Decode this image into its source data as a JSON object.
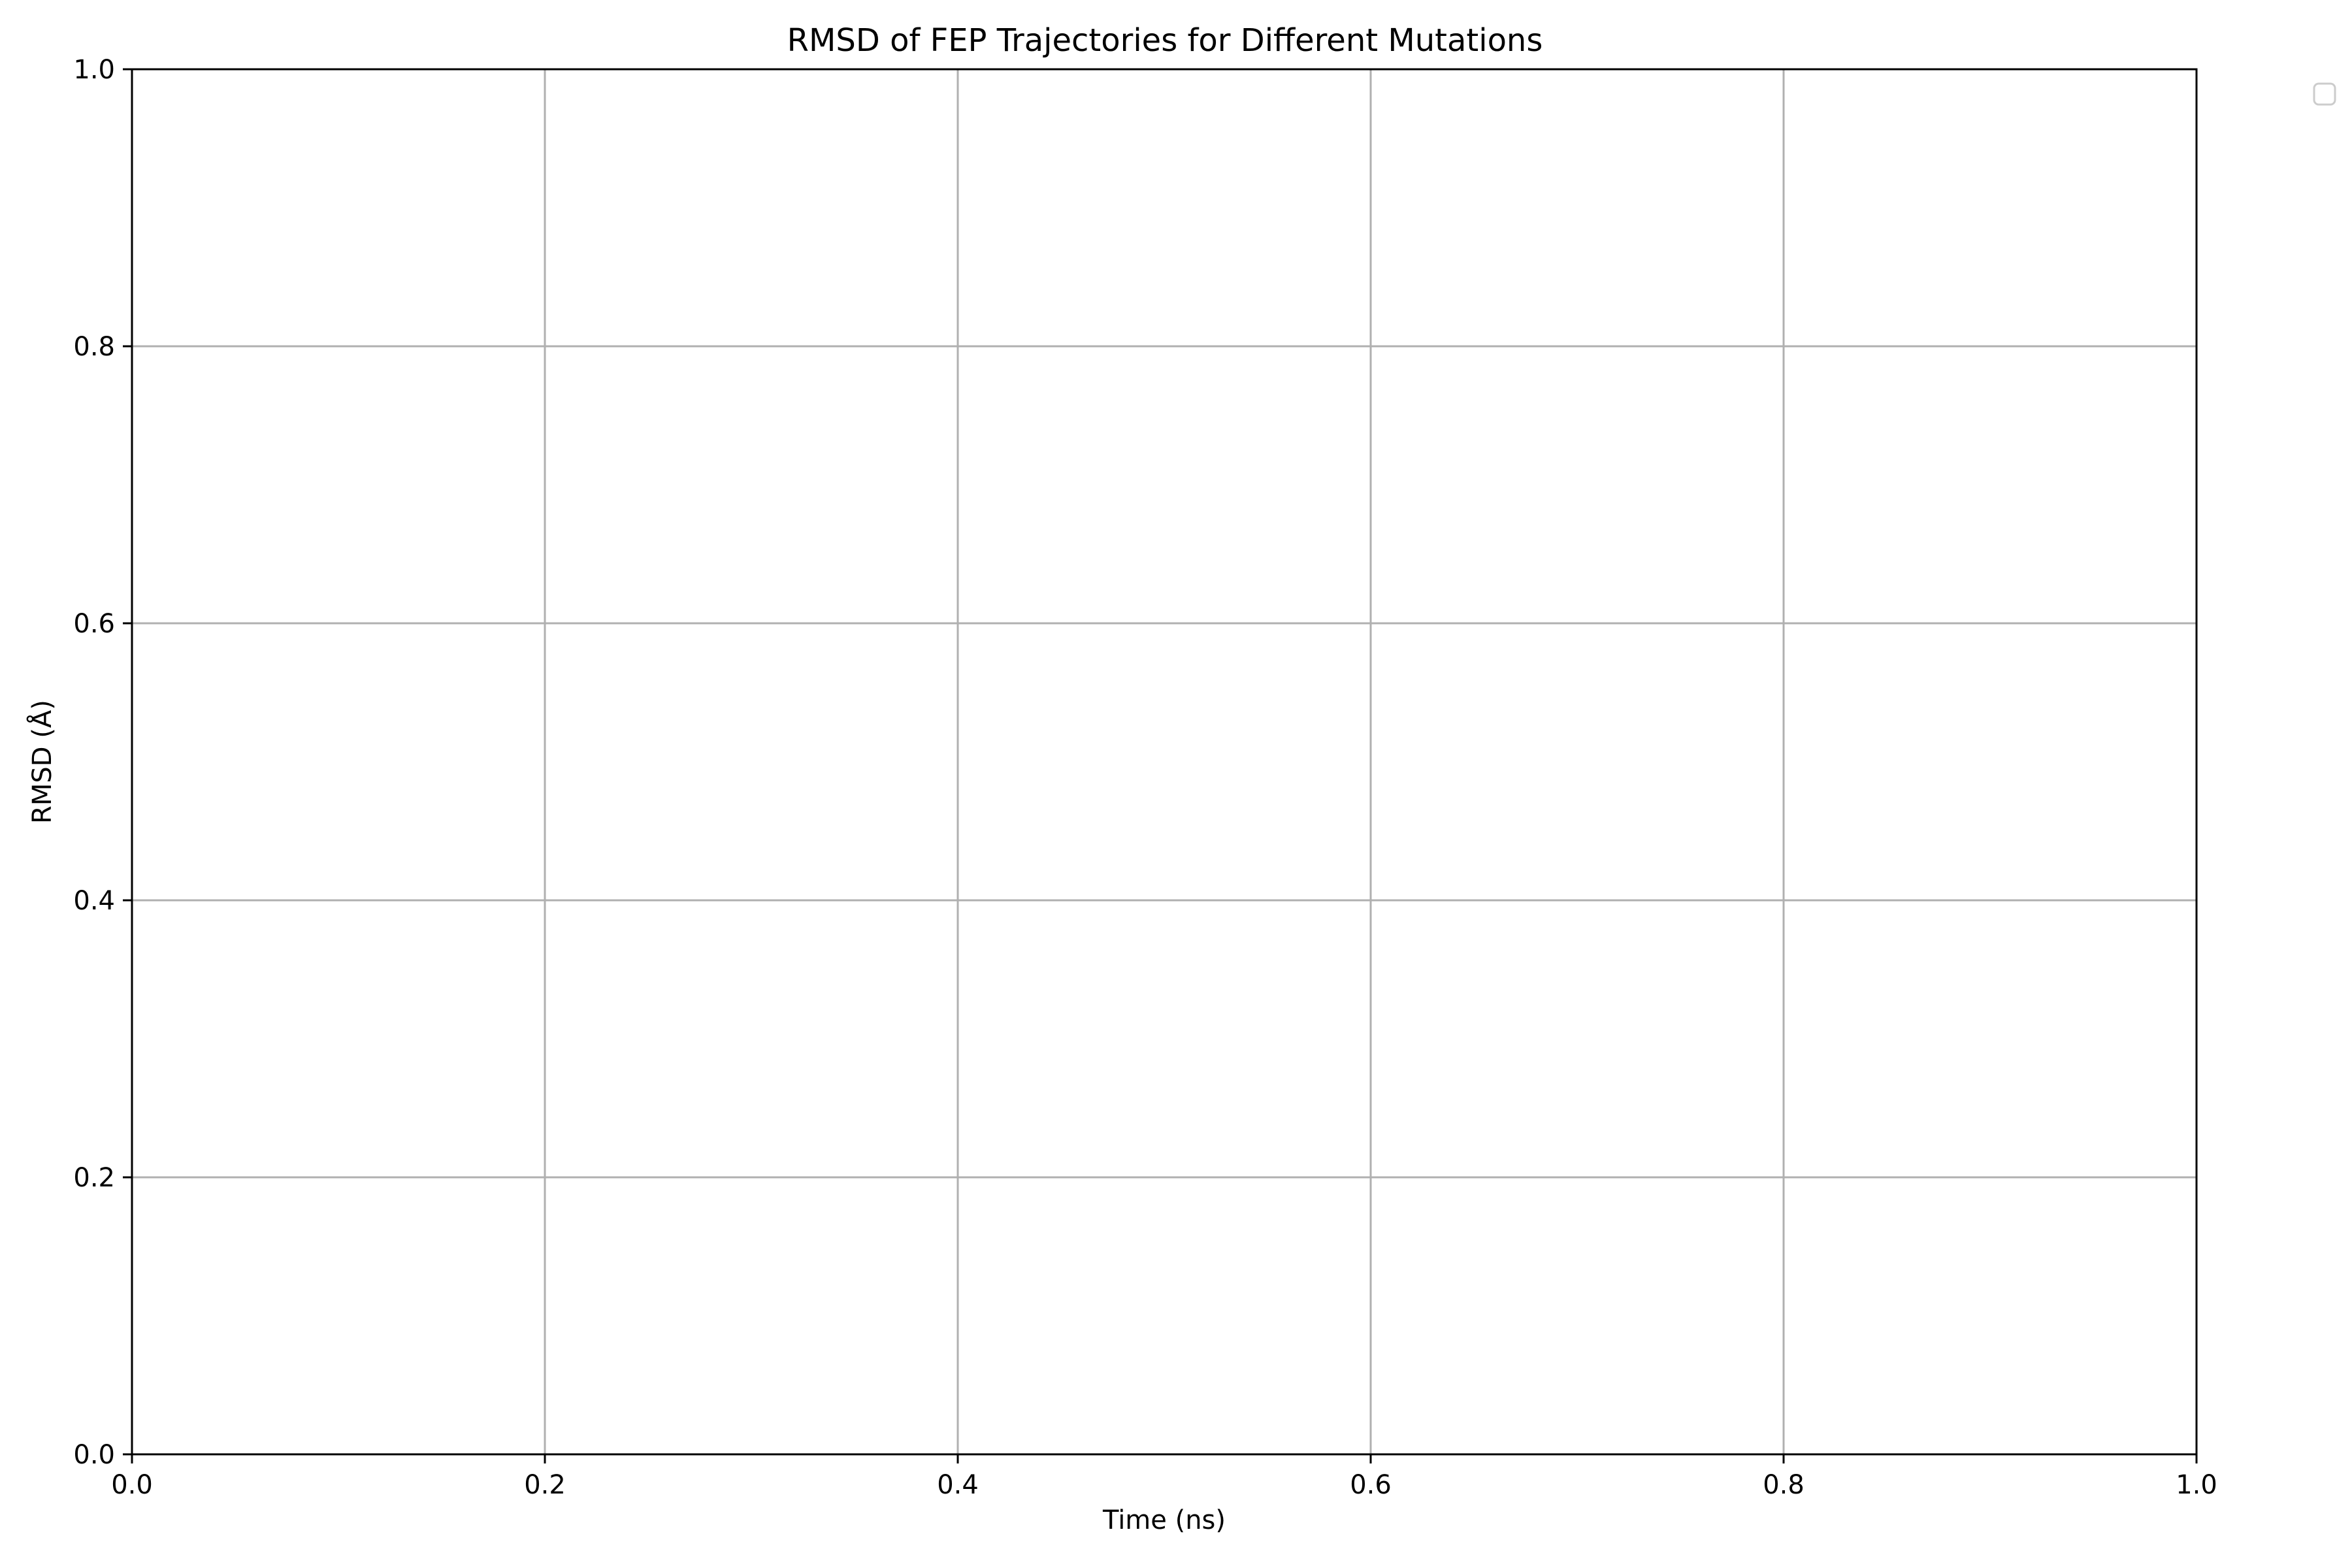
{
  "chart_data": {
    "type": "line",
    "title": "RMSD of FEP Trajectories for Different Mutations",
    "xlabel": "Time (ns)",
    "ylabel": "RMSD (Å)",
    "xlim": [
      0.0,
      1.0
    ],
    "ylim": [
      0.0,
      1.0
    ],
    "xticks": [
      "0.0",
      "0.2",
      "0.4",
      "0.6",
      "0.8",
      "1.0"
    ],
    "yticks": [
      "0.0",
      "0.2",
      "0.4",
      "0.6",
      "0.8",
      "1.0"
    ],
    "x": [],
    "series": [],
    "grid": true,
    "legend": "outside-top-right",
    "grid_color": "#b0b0b0",
    "axis_color": "#000000"
  }
}
